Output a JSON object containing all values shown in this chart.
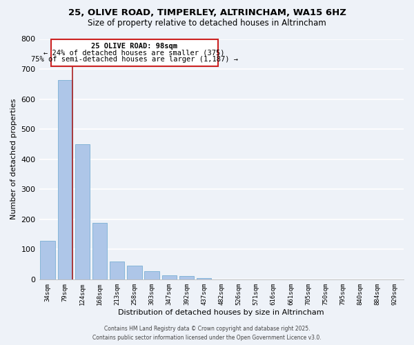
{
  "title_line1": "25, OLIVE ROAD, TIMPERLEY, ALTRINCHAM, WA15 6HZ",
  "title_line2": "Size of property relative to detached houses in Altrincham",
  "xlabel": "Distribution of detached houses by size in Altrincham",
  "ylabel": "Number of detached properties",
  "bar_labels": [
    "34sqm",
    "79sqm",
    "124sqm",
    "168sqm",
    "213sqm",
    "258sqm",
    "303sqm",
    "347sqm",
    "392sqm",
    "437sqm",
    "482sqm",
    "526sqm",
    "571sqm",
    "616sqm",
    "661sqm",
    "705sqm",
    "750sqm",
    "795sqm",
    "840sqm",
    "884sqm",
    "929sqm"
  ],
  "bar_values": [
    128,
    663,
    450,
    187,
    60,
    46,
    27,
    14,
    12,
    5,
    0,
    0,
    0,
    0,
    0,
    0,
    0,
    0,
    0,
    0,
    0
  ],
  "bar_color": "#aec6e8",
  "bar_edge_color": "#7aafd4",
  "ylim": [
    0,
    800
  ],
  "yticks": [
    0,
    100,
    200,
    300,
    400,
    500,
    600,
    700,
    800
  ],
  "property_bar_index": 1,
  "vline_color": "#aa2222",
  "annotation_title": "25 OLIVE ROAD: 98sqm",
  "annotation_line2": "← 24% of detached houses are smaller (375)",
  "annotation_line3": "75% of semi-detached houses are larger (1,187) →",
  "annotation_box_color": "#cc2222",
  "annotation_fill": "#ffffff",
  "footnote1": "Contains HM Land Registry data © Crown copyright and database right 2025.",
  "footnote2": "Contains public sector information licensed under the Open Government Licence v3.0.",
  "bg_color": "#eef2f8",
  "grid_color": "#ffffff"
}
